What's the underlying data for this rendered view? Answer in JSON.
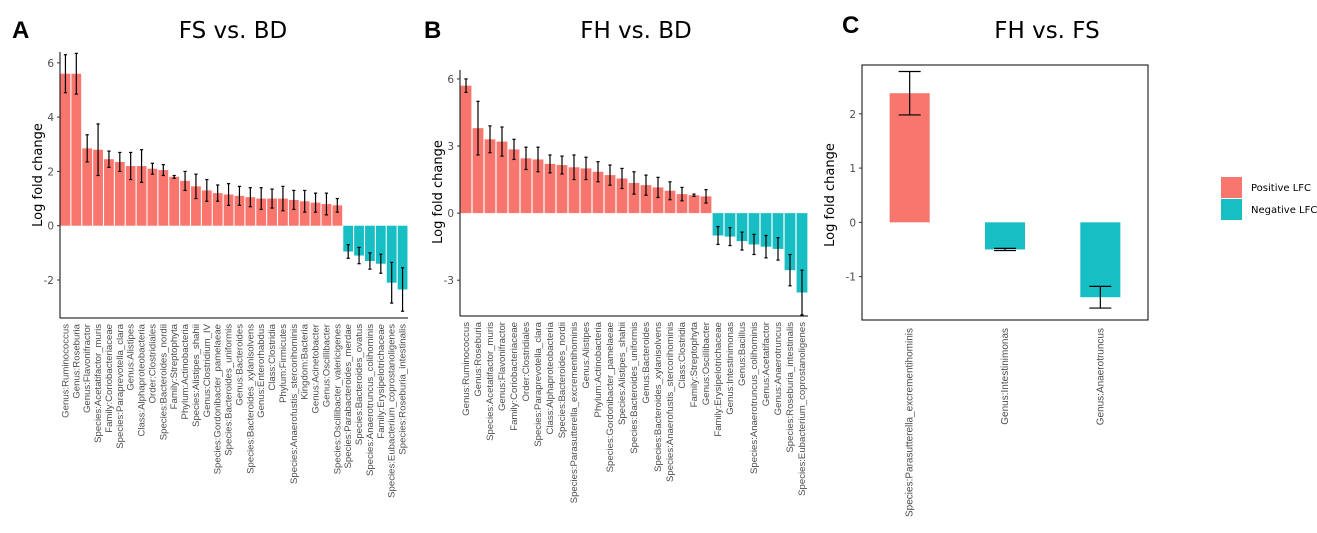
{
  "colors": {
    "positive": "#F8766D",
    "negative": "#17BEC4",
    "axis": "#000000",
    "tick_text": "#4d4d4d"
  },
  "legend": {
    "placement": "right",
    "entries": [
      {
        "label": "Positive LFC",
        "color": "#F8766D"
      },
      {
        "label": "Negative LFC",
        "color": "#17BEC4"
      }
    ]
  },
  "chart_data": [
    {
      "panel": "A",
      "type": "bar",
      "title": "FS vs. BD",
      "ylabel": "Log fold change",
      "ylim": [
        -3.4,
        6.4
      ],
      "yticks": [
        -2,
        0,
        2,
        4,
        6
      ],
      "grid": false,
      "categories": [
        "Genus:Ruminococcus",
        "Genus:Roseburia",
        "Genus:Flavonifractor",
        "Species:Acetatifactor_muris",
        "Family:Coriobacteriaceae",
        "Species:Paraprevotella_clara",
        "Genus:Alistipes",
        "Class:Alphaproteobacteria",
        "Order:Clostridiales",
        "Species:Bacteroides_nordii",
        "Family:Streptophyta",
        "Phylum:Actinobacteria",
        "Species:Alistipes_shahii",
        "Genus:Clostridium_IV",
        "Species:Gordonibacter_pamelaeae",
        "Species:Bacteroides_uniformis",
        "Genus:Bacteroides",
        "Species:Bacteroides_xylanisolvens",
        "Genus:Enterorhabdus",
        "Class:Clostridia",
        "Phylum:Firmicutes",
        "Species:Anaerofustis_stercorihominis",
        "Kingdom:Bacteria",
        "Genus:Acinetobacter",
        "Genus:Oscillibacter",
        "Species:Oscillibacter_valericigenes",
        "Species:Parabacteroides_merdae",
        "Species:Bacteroides_ovatus",
        "Species:Anaerotruncus_colihominis",
        "Family:Erysipelotrichaceae",
        "Species:Eubacterium_coprostanoligenes",
        "Species:Roseburia_intestinalis"
      ],
      "values": [
        5.6,
        5.6,
        2.85,
        2.8,
        2.45,
        2.35,
        2.2,
        2.2,
        2.1,
        2.05,
        1.8,
        1.65,
        1.45,
        1.3,
        1.2,
        1.15,
        1.1,
        1.05,
        1.0,
        1.0,
        1.0,
        0.95,
        0.9,
        0.85,
        0.8,
        0.75,
        -0.95,
        -1.1,
        -1.3,
        -1.4,
        -2.1,
        -2.35
      ],
      "errors": [
        0.7,
        0.75,
        0.5,
        0.95,
        0.3,
        0.35,
        0.5,
        0.6,
        0.2,
        0.2,
        0.05,
        0.35,
        0.45,
        0.4,
        0.3,
        0.4,
        0.35,
        0.35,
        0.4,
        0.35,
        0.45,
        0.35,
        0.4,
        0.35,
        0.4,
        0.25,
        0.25,
        0.3,
        0.3,
        0.35,
        0.75,
        0.8
      ]
    },
    {
      "panel": "B",
      "type": "bar",
      "title": "FH vs. BD",
      "ylabel": "Log fold change",
      "ylim": [
        -4.6,
        6.4
      ],
      "yticks": [
        -3,
        0,
        3,
        6
      ],
      "grid": false,
      "categories": [
        "Genus:Ruminococcus",
        "Genus:Roseburia",
        "Species:Acetatifactor_muris",
        "Genus:Flavonifractor",
        "Family:Coriobacteriaceae",
        "Order:Clostridiales",
        "Species:Paraprevotella_clara",
        "Class:Alphaproteobacteria",
        "Species:Bacteroides_nordii",
        "Species:Parasutterella_excrementihominis",
        "Genus:Alistipes",
        "Phylum:Actinobacteria",
        "Species:Gordonibacter_pamelaeae",
        "Species:Alistipes_shahii",
        "Species:Bacteroides_uniformis",
        "Genus:Bacteroides",
        "Species:Bacteroides_xylanisolvens",
        "Species:Anaerofustis_stercorihominis",
        "Class:Clostridia",
        "Family:Streptophyta",
        "Genus:Oscillibacter",
        "Family:Erysipelotrichaceae",
        "Genus:Intestinimonas",
        "Genus:Bacillus",
        "Species:Anaerotruncus_colihominis",
        "Genus:Acetatifactor",
        "Genus:Anaerotruncus",
        "Species:Roseburia_intestinalis",
        "Species:Eubacterium_coprostanoligenes"
      ],
      "values": [
        5.7,
        3.8,
        3.3,
        3.2,
        2.85,
        2.45,
        2.4,
        2.2,
        2.15,
        2.05,
        2.0,
        1.85,
        1.7,
        1.55,
        1.35,
        1.25,
        1.15,
        1.0,
        0.85,
        0.8,
        0.75,
        -1.0,
        -1.05,
        -1.25,
        -1.4,
        -1.5,
        -1.6,
        -2.55,
        -3.55
      ],
      "errors": [
        0.3,
        1.2,
        0.6,
        0.65,
        0.45,
        0.5,
        0.55,
        0.4,
        0.4,
        0.55,
        0.5,
        0.45,
        0.45,
        0.45,
        0.5,
        0.45,
        0.45,
        0.4,
        0.3,
        0.05,
        0.3,
        0.4,
        0.4,
        0.4,
        0.45,
        0.5,
        0.5,
        0.7,
        1.0
      ]
    },
    {
      "panel": "C",
      "type": "bar",
      "title": "FH vs. FS",
      "ylabel": "Log fold change",
      "ylim": [
        -1.8,
        2.9
      ],
      "yticks": [
        -1,
        0,
        1,
        2
      ],
      "grid": false,
      "categories": [
        "Species:Parasutterella_excrementihominis",
        "Genus:Intestinimonas",
        "Genus:Anaerotruncus"
      ],
      "values": [
        2.38,
        -0.5,
        -1.38
      ],
      "errors": [
        0.4,
        0.02,
        0.2
      ]
    }
  ]
}
